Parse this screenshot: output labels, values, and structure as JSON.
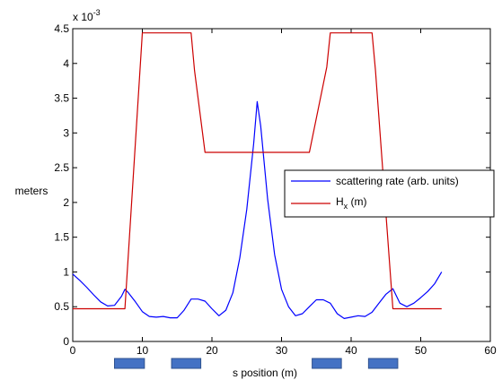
{
  "chart_data": {
    "type": "line",
    "xlabel": "s position (m)",
    "ylabel": "meters",
    "exponent_label": "x 10",
    "exponent_power": "-3",
    "xlim": [
      0,
      60
    ],
    "ylim": [
      0,
      4.5
    ],
    "x_ticks": [
      0,
      10,
      20,
      30,
      40,
      50,
      60
    ],
    "y_ticks": [
      0,
      0.5,
      1,
      1.5,
      2,
      2.5,
      3,
      3.5,
      4,
      4.5
    ],
    "x_tick_labels": [
      "0",
      "10",
      "20",
      "30",
      "40",
      "50",
      "60"
    ],
    "y_tick_labels": [
      "0",
      "0.5",
      "1",
      "1.5",
      "2",
      "2.5",
      "3",
      "3.5",
      "4",
      "4.5"
    ],
    "grid": false,
    "legend_position": "right",
    "series": [
      {
        "name": "scattering rate (arb. units)",
        "color": "#0000ff",
        "x": [
          0,
          1,
          2,
          3,
          4,
          5,
          6,
          7,
          7.5,
          8,
          9,
          10,
          11,
          12,
          13,
          14,
          15,
          16,
          17,
          18,
          19,
          20,
          21,
          22,
          23,
          24,
          25,
          26,
          26.5,
          27,
          28,
          29,
          30,
          31,
          32,
          33,
          34,
          35,
          36,
          37,
          38,
          39,
          40,
          41,
          42,
          43,
          44,
          45,
          46,
          47,
          48,
          49,
          50,
          51,
          52,
          53
        ],
        "y": [
          0.97,
          0.88,
          0.78,
          0.67,
          0.57,
          0.51,
          0.52,
          0.65,
          0.75,
          0.7,
          0.57,
          0.43,
          0.36,
          0.35,
          0.36,
          0.34,
          0.34,
          0.45,
          0.61,
          0.61,
          0.58,
          0.47,
          0.37,
          0.45,
          0.7,
          1.2,
          1.9,
          2.85,
          3.45,
          3.1,
          2.05,
          1.25,
          0.75,
          0.5,
          0.37,
          0.4,
          0.5,
          0.6,
          0.6,
          0.55,
          0.4,
          0.33,
          0.35,
          0.37,
          0.36,
          0.42,
          0.55,
          0.68,
          0.76,
          0.55,
          0.5,
          0.55,
          0.63,
          0.72,
          0.83,
          1.0
        ]
      },
      {
        "name": "H",
        "name_subscript": "x",
        "name_suffix": " (m)",
        "color": "#cc0000",
        "x": [
          0,
          7.5,
          10,
          17,
          17.5,
          19,
          34,
          36.5,
          37,
          43,
          43.5,
          46,
          53
        ],
        "y": [
          0.47,
          0.47,
          4.44,
          4.44,
          3.9,
          2.72,
          2.72,
          3.95,
          4.44,
          4.44,
          3.9,
          0.47,
          0.47
        ]
      }
    ],
    "annotations": {
      "magnet_blocks": [
        {
          "x_start": 6,
          "x_end": 10.3
        },
        {
          "x_start": 14.2,
          "x_end": 18.4
        },
        {
          "x_start": 34.4,
          "x_end": 38.6
        },
        {
          "x_start": 42.5,
          "x_end": 46.7
        }
      ],
      "block_color": "#4472c4"
    }
  }
}
